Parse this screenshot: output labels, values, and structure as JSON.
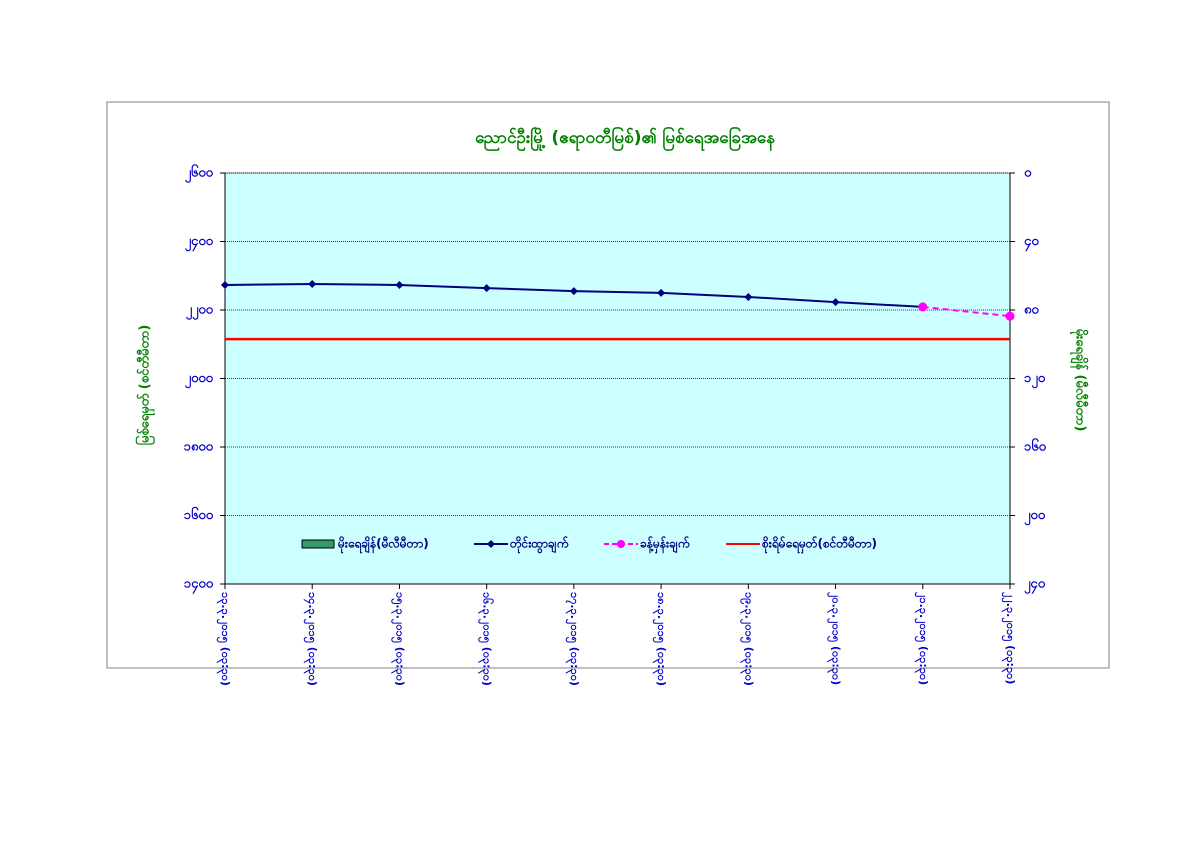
{
  "chart_data": {
    "type": "line",
    "title": "ညောင်ဦးမြို့ (ဧရာဝတီမြစ်)၏ မြစ်ရေအခြေအနေ",
    "y_label": "မြစ်ရေမှတ် (စင်တီမီတာ)",
    "y2_label": "မိုးရေချိန် (မီလီမီတာ)",
    "categories": [
      "၁၃.၃.၂၀၁၅ (၀၃:၃၀)",
      "၁၄.၃.၂၀၁၅ (၀၃:၃၀)",
      "၁၅.၃.၂၀၁၅ (၀၃:၃၀)",
      "၁၆.၃.၂၀၁၅ (၀၃:၃၀)",
      "၁၇.၃.၂၀၁၅ (၀၃:၃၀)",
      "၁၈.၃.၂၀၁၅ (၀၃:၃၀)",
      "၁၉.၃.၂၀၁၅ (၀၃:၃၀)",
      "၂၀.၃.၂၀၁၅ (၀၃:၃၀)",
      "၂၁.၃.၂၀၁၅ (၀၃:၃၀)",
      "၂၂.၃.၂၀၁၅ (၀၃:၃၀)"
    ],
    "series": [
      {
        "name": "မိုးရေချိန်(မီလီမီတာ)",
        "color": "#339966",
        "kind": "bar",
        "axis": "y2",
        "values": [
          0,
          0,
          0,
          0,
          0,
          0,
          0,
          0,
          0,
          0
        ]
      },
      {
        "name": "တိုင်းထွာချက်",
        "color": "#000080",
        "kind": "line",
        "values": [
          2273,
          2276,
          2273,
          2264,
          2255,
          2250,
          2238,
          2223,
          2209,
          null
        ]
      },
      {
        "name": "ခန့်မှန်းချက်",
        "color": "#ff00ff",
        "kind": "dashed",
        "values": [
          null,
          null,
          null,
          null,
          null,
          null,
          null,
          null,
          2209,
          2182
        ]
      },
      {
        "name": "စိုးရိမ်ရေမှတ်(စင်တီမီတာ)",
        "color": "#ff0000",
        "kind": "level",
        "values": [
          2115,
          2115,
          2115,
          2115,
          2115,
          2115,
          2115,
          2115,
          2115,
          2115
        ]
      }
    ],
    "ylim": [
      1400,
      2600
    ],
    "yticks": [
      {
        "value": 1400,
        "label": "၁၄၀၀"
      },
      {
        "value": 1600,
        "label": "၁၆၀၀"
      },
      {
        "value": 1800,
        "label": "၁၈၀၀"
      },
      {
        "value": 2000,
        "label": "၂၀၀၀"
      },
      {
        "value": 2200,
        "label": "၂၂၀၀"
      },
      {
        "value": 2400,
        "label": "၂၄၀၀"
      },
      {
        "value": 2600,
        "label": "၂၆၀၀"
      }
    ],
    "y2lim": [
      0,
      240
    ],
    "y2_reversed": true,
    "y2ticks": [
      {
        "value": 0,
        "label": "၀"
      },
      {
        "value": 40,
        "label": "၄၀"
      },
      {
        "value": 80,
        "label": "၈၀"
      },
      {
        "value": 120,
        "label": "၁၂၀"
      },
      {
        "value": 160,
        "label": "၁၆၀"
      },
      {
        "value": 200,
        "label": "၂၀၀"
      },
      {
        "value": 240,
        "label": "၂၄၀"
      }
    ],
    "grid": true,
    "plot_background": "#ccffff"
  }
}
